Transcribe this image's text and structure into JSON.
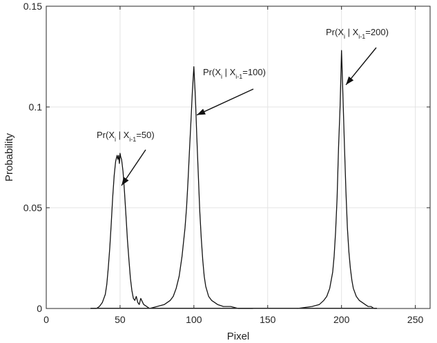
{
  "chart_data": {
    "type": "line",
    "title": "",
    "xlabel": "Pixel",
    "ylabel": "Probability",
    "xlim": [
      0,
      260
    ],
    "ylim": [
      0,
      0.15
    ],
    "xticks": [
      0,
      50,
      100,
      150,
      200,
      250
    ],
    "yticks": [
      0,
      0.05,
      0.1,
      0.15
    ],
    "xtick_labels": [
      "0",
      "50",
      "100",
      "150",
      "200",
      "250"
    ],
    "ytick_labels": [
      "0",
      "0.05",
      "0.1",
      "0.15"
    ],
    "grid": true,
    "series": [
      {
        "x": [
          30,
          34,
          36,
          38,
          40,
          41,
          42,
          43,
          44,
          45,
          46,
          47,
          48,
          48.5,
          49,
          49.5,
          50,
          50.5,
          51,
          52,
          53,
          54,
          55,
          56,
          57,
          58,
          59,
          60,
          61,
          62,
          63,
          64,
          66,
          68,
          70
        ],
        "y": [
          0,
          0,
          0.001,
          0.003,
          0.007,
          0.012,
          0.02,
          0.03,
          0.042,
          0.055,
          0.066,
          0.073,
          0.076,
          0.074,
          0.076,
          0.072,
          0.077,
          0.075,
          0.074,
          0.068,
          0.058,
          0.046,
          0.034,
          0.024,
          0.015,
          0.009,
          0.005,
          0.004,
          0.006,
          0.003,
          0.002,
          0.005,
          0.002,
          0.001,
          0
        ]
      },
      {
        "x": [
          70,
          75,
          80,
          84,
          86,
          88,
          90,
          92,
          94,
          95,
          96,
          97,
          98,
          99,
          100,
          101,
          102,
          103,
          104,
          105,
          106,
          107,
          108,
          110,
          112,
          114,
          116,
          120,
          125,
          130,
          140
        ],
        "y": [
          0,
          0.001,
          0.002,
          0.004,
          0.006,
          0.01,
          0.016,
          0.026,
          0.04,
          0.05,
          0.063,
          0.078,
          0.093,
          0.108,
          0.12,
          0.105,
          0.085,
          0.066,
          0.048,
          0.035,
          0.024,
          0.016,
          0.011,
          0.006,
          0.004,
          0.003,
          0.002,
          0.001,
          0.001,
          0,
          0
        ]
      },
      {
        "x": [
          170,
          180,
          185,
          188,
          190,
          192,
          194,
          195,
          196,
          197,
          198,
          199,
          200,
          201,
          202,
          203,
          204,
          205,
          206,
          207,
          208,
          210,
          212,
          214,
          216,
          218,
          220,
          222,
          224
        ],
        "y": [
          0,
          0.001,
          0.002,
          0.004,
          0.006,
          0.01,
          0.018,
          0.026,
          0.038,
          0.055,
          0.08,
          0.1,
          0.128,
          0.105,
          0.08,
          0.058,
          0.04,
          0.028,
          0.02,
          0.014,
          0.01,
          0.006,
          0.004,
          0.003,
          0.002,
          0.001,
          0.001,
          0,
          0
        ]
      }
    ],
    "annotations": [
      {
        "main": "Pr(X",
        "sub1": "i",
        "mid": " | X",
        "sub2": "i-1",
        "tail": "=50)",
        "target": [
          51,
          0.061
        ]
      },
      {
        "main": "Pr(X",
        "sub1": "i",
        "mid": " | X",
        "sub2": "i-1",
        "tail": "=100)",
        "target": [
          102,
          0.096
        ]
      },
      {
        "main": "Pr(X",
        "sub1": "i",
        "mid": " | X",
        "sub2": "i-1",
        "tail": "=200)",
        "target": [
          203,
          0.111
        ]
      }
    ]
  }
}
